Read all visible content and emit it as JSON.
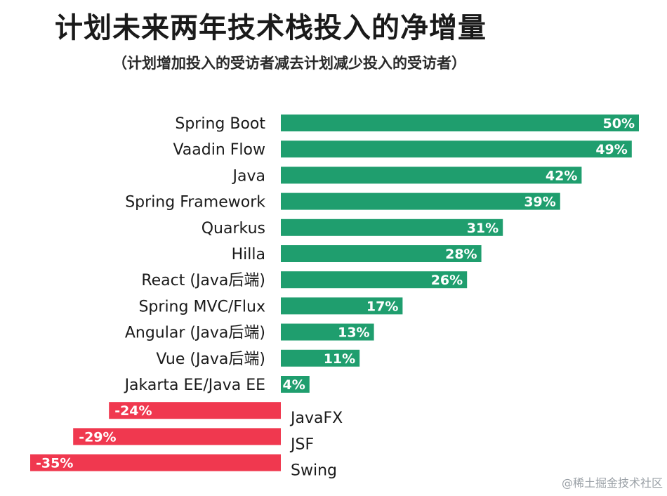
{
  "title": "计划未来两年技术栈投入的净增量",
  "subtitle": "（计划增加投入的受访者减去计划减少投入的受访者）",
  "watermark": "@稀土掘金技术社区",
  "colors": {
    "positive": "#1f9e6e",
    "negative": "#f0384f",
    "text": "#1a1a1a",
    "label_on_bar": "#ffffff"
  },
  "chart_data": {
    "type": "bar",
    "orientation": "horizontal",
    "title": "计划未来两年技术栈投入的净增量",
    "subtitle": "（计划增加投入的受访者减去计划减少投入的受访者）",
    "categories": [
      "Spring Boot",
      "Vaadin Flow",
      "Java",
      "Spring Framework",
      "Quarkus",
      "Hilla",
      "React (Java后端)",
      "Spring MVC/Flux",
      "Angular (Java后端)",
      "Vue (Java后端)",
      "Jakarta EE/Java EE",
      "JavaFX",
      "JSF",
      "Swing"
    ],
    "values": [
      50,
      49,
      42,
      39,
      31,
      28,
      26,
      17,
      13,
      11,
      4,
      -24,
      -29,
      -35
    ],
    "value_labels": [
      "50%",
      "49%",
      "42%",
      "39%",
      "31%",
      "28%",
      "26%",
      "17%",
      "13%",
      "11%",
      "4%",
      "-24%",
      "-29%",
      "-35%"
    ],
    "unit": "%",
    "grid": false,
    "legend": "none"
  }
}
